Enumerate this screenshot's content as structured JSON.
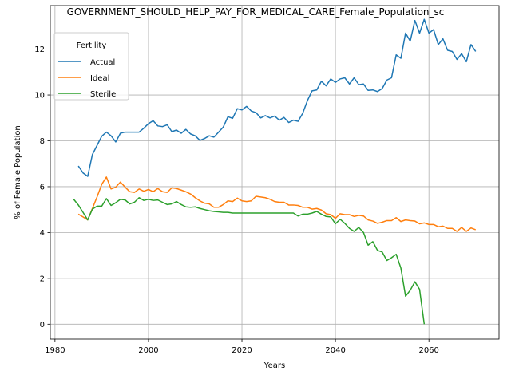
{
  "chart_data": {
    "type": "line",
    "title": "GOVERNMENT_SHOULD_HELP_PAY_FOR_MEDICAL_CARE_Female_Population_sc",
    "xlabel": "Years",
    "ylabel": "% of Female Population",
    "xlim": [
      1979,
      2075
    ],
    "ylim": [
      -0.65,
      13.9
    ],
    "xticks": [
      1980,
      2000,
      2020,
      2040,
      2060
    ],
    "yticks": [
      0,
      2,
      4,
      6,
      8,
      10,
      12
    ],
    "grid": true,
    "legend": {
      "title": "Fertility",
      "placement": "top-left"
    },
    "series": [
      {
        "name": "Actual",
        "color": "#1f77b4",
        "x": [
          1985,
          1986,
          1987,
          1988,
          1989,
          1990,
          1991,
          1992,
          1993,
          1994,
          1995,
          1996,
          1997,
          1998,
          1999,
          2000,
          2001,
          2002,
          2003,
          2004,
          2005,
          2006,
          2007,
          2008,
          2009,
          2010,
          2011,
          2012,
          2013,
          2014,
          2015,
          2016,
          2017,
          2018,
          2019,
          2020,
          2021,
          2022,
          2023,
          2024,
          2025,
          2026,
          2027,
          2028,
          2029,
          2030,
          2031,
          2032,
          2033,
          2034,
          2035,
          2036,
          2037,
          2038,
          2039,
          2040,
          2041,
          2042,
          2043,
          2044,
          2045,
          2046,
          2047,
          2048,
          2049,
          2050,
          2051,
          2052,
          2053,
          2054,
          2055,
          2056,
          2057,
          2058,
          2059,
          2060,
          2061,
          2062,
          2063,
          2064,
          2065,
          2066,
          2067,
          2068,
          2069,
          2070
        ],
        "values": [
          6.9,
          6.6,
          6.45,
          7.4,
          7.8,
          8.2,
          8.38,
          8.22,
          7.95,
          8.33,
          8.38,
          8.38,
          8.38,
          8.38,
          8.55,
          8.75,
          8.88,
          8.65,
          8.62,
          8.7,
          8.4,
          8.47,
          8.33,
          8.5,
          8.3,
          8.22,
          8.02,
          8.1,
          8.22,
          8.16,
          8.38,
          8.6,
          9.05,
          8.98,
          9.4,
          9.35,
          9.5,
          9.3,
          9.23,
          9.0,
          9.1,
          9.0,
          9.08,
          8.9,
          9.02,
          8.8,
          8.9,
          8.85,
          9.2,
          9.75,
          10.18,
          10.22,
          10.6,
          10.4,
          10.7,
          10.55,
          10.7,
          10.75,
          10.48,
          10.75,
          10.45,
          10.48,
          10.2,
          10.22,
          10.15,
          10.28,
          10.65,
          10.75,
          11.75,
          11.6,
          12.7,
          12.35,
          13.25,
          12.7,
          13.3,
          12.7,
          12.85,
          12.2,
          12.45,
          11.95,
          11.9,
          11.55,
          11.8,
          11.45,
          12.2,
          11.9
        ]
      },
      {
        "name": "Ideal",
        "color": "#ff7f0e",
        "x": [
          1985,
          1986,
          1987,
          1988,
          1989,
          1990,
          1991,
          1992,
          1993,
          1994,
          1995,
          1996,
          1997,
          1998,
          1999,
          2000,
          2001,
          2002,
          2003,
          2004,
          2005,
          2006,
          2007,
          2008,
          2009,
          2010,
          2011,
          2012,
          2013,
          2014,
          2015,
          2016,
          2017,
          2018,
          2019,
          2020,
          2021,
          2022,
          2023,
          2024,
          2025,
          2026,
          2027,
          2028,
          2029,
          2030,
          2031,
          2032,
          2033,
          2034,
          2035,
          2036,
          2037,
          2038,
          2039,
          2040,
          2041,
          2042,
          2043,
          2044,
          2045,
          2046,
          2047,
          2048,
          2049,
          2050,
          2051,
          2052,
          2053,
          2054,
          2055,
          2056,
          2057,
          2058,
          2059,
          2060,
          2061,
          2062,
          2063,
          2064,
          2065,
          2066,
          2067,
          2068,
          2069,
          2070
        ],
        "values": [
          4.8,
          4.68,
          4.55,
          5.05,
          5.55,
          6.1,
          6.42,
          5.9,
          5.98,
          6.2,
          5.98,
          5.78,
          5.75,
          5.9,
          5.8,
          5.88,
          5.78,
          5.92,
          5.78,
          5.75,
          5.95,
          5.92,
          5.85,
          5.78,
          5.68,
          5.52,
          5.38,
          5.28,
          5.25,
          5.1,
          5.1,
          5.22,
          5.38,
          5.35,
          5.5,
          5.38,
          5.35,
          5.38,
          5.58,
          5.55,
          5.52,
          5.45,
          5.35,
          5.32,
          5.32,
          5.2,
          5.2,
          5.18,
          5.1,
          5.1,
          5.02,
          5.05,
          4.98,
          4.82,
          4.78,
          4.62,
          4.82,
          4.78,
          4.78,
          4.7,
          4.75,
          4.72,
          4.55,
          4.5,
          4.4,
          4.45,
          4.52,
          4.52,
          4.65,
          4.48,
          4.55,
          4.52,
          4.5,
          4.38,
          4.42,
          4.35,
          4.35,
          4.25,
          4.28,
          4.18,
          4.18,
          4.05,
          4.22,
          4.05,
          4.2,
          4.12
        ]
      },
      {
        "name": "Sterile",
        "color": "#2ca02c",
        "x": [
          1984,
          1985,
          1986,
          1987,
          1988,
          1989,
          1990,
          1991,
          1992,
          1993,
          1994,
          1995,
          1996,
          1997,
          1998,
          1999,
          2000,
          2001,
          2002,
          2003,
          2004,
          2005,
          2006,
          2007,
          2008,
          2009,
          2010,
          2011,
          2012,
          2013,
          2014,
          2015,
          2016,
          2017,
          2018,
          2019,
          2020,
          2021,
          2022,
          2023,
          2024,
          2025,
          2026,
          2027,
          2028,
          2029,
          2030,
          2031,
          2032,
          2033,
          2034,
          2035,
          2036,
          2037,
          2038,
          2039,
          2040,
          2041,
          2042,
          2043,
          2044,
          2045,
          2046,
          2047,
          2048,
          2049,
          2050,
          2051,
          2052,
          2053,
          2054,
          2055,
          2056,
          2057,
          2058,
          2059
        ],
        "values": [
          5.45,
          5.2,
          4.88,
          4.55,
          5.02,
          5.15,
          5.15,
          5.48,
          5.18,
          5.3,
          5.45,
          5.42,
          5.25,
          5.32,
          5.52,
          5.4,
          5.45,
          5.4,
          5.42,
          5.32,
          5.22,
          5.25,
          5.35,
          5.22,
          5.12,
          5.1,
          5.12,
          5.05,
          5.0,
          4.95,
          4.92,
          4.9,
          4.88,
          4.88,
          4.85,
          4.85,
          4.85,
          4.85,
          4.85,
          4.85,
          4.85,
          4.85,
          4.85,
          4.85,
          4.85,
          4.85,
          4.85,
          4.85,
          4.72,
          4.8,
          4.8,
          4.85,
          4.92,
          4.8,
          4.7,
          4.68,
          4.38,
          4.58,
          4.4,
          4.18,
          4.05,
          4.22,
          4.0,
          3.45,
          3.6,
          3.22,
          3.15,
          2.78,
          2.9,
          3.05,
          2.45,
          1.22,
          1.48,
          1.85,
          1.52,
          0.0
        ]
      }
    ]
  }
}
